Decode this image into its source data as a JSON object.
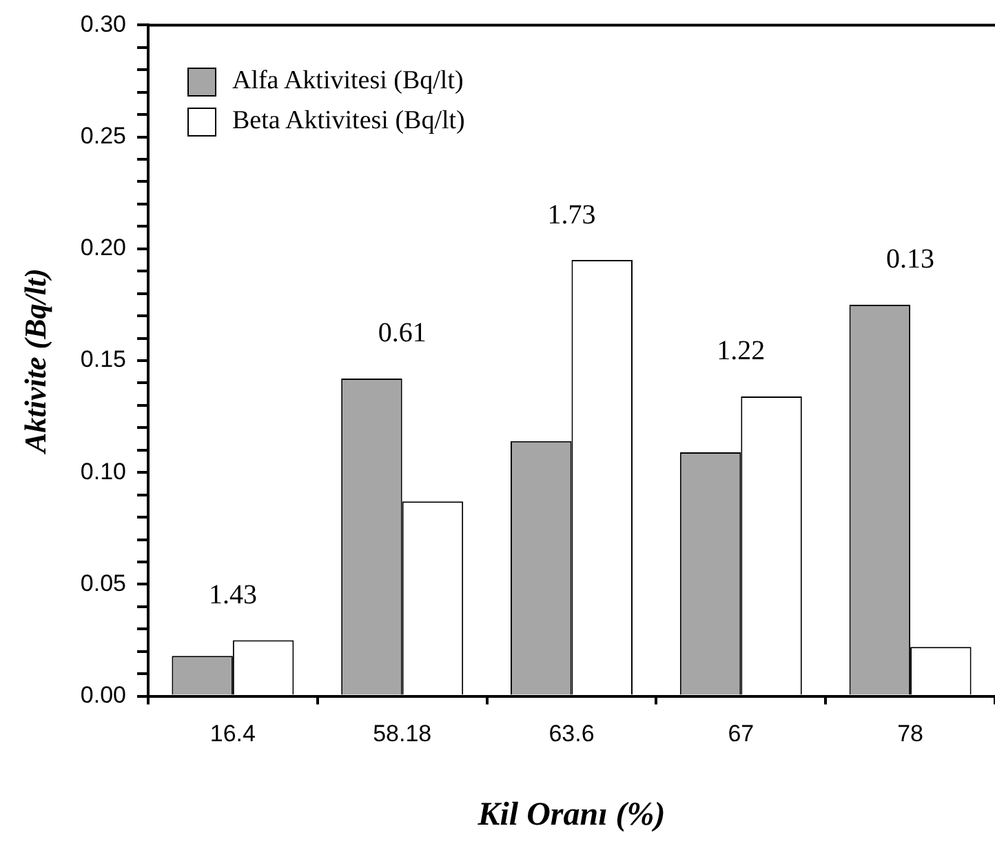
{
  "chart_data": {
    "type": "bar",
    "xlabel": "Kil Oranı (%)",
    "ylabel": "Aktivite (Bq/lt)",
    "categories": [
      "16.4",
      "58.18",
      "63.6",
      "67",
      "78"
    ],
    "series": [
      {
        "name": "Alfa Aktivitesi (Bq/lt)",
        "color": "#a6a6a6",
        "values": [
          0.018,
          0.142,
          0.114,
          0.109,
          0.175
        ]
      },
      {
        "name": "Beta Aktivitesi (Bq/lt)",
        "color": "#ffffff",
        "values": [
          0.025,
          0.087,
          0.195,
          0.134,
          0.022
        ]
      }
    ],
    "ylim": [
      0,
      0.3
    ],
    "yticks": [
      {
        "value": 0,
        "label": "0.00"
      },
      {
        "value": 0.01,
        "label": null
      },
      {
        "value": 0.02,
        "label": null
      },
      {
        "value": 0.03,
        "label": null
      },
      {
        "value": 0.04,
        "label": null
      },
      "0.05",
      {
        "value": 0.06,
        "label": null
      },
      {
        "value": 0.07,
        "label": null
      },
      {
        "value": 0.08,
        "label": null
      },
      {
        "value": 0.09,
        "label": null
      },
      {
        "value": 0.1,
        "label": "0.10"
      },
      {
        "value": 0.11,
        "label": null
      },
      {
        "value": 0.12,
        "label": null
      },
      {
        "value": 0.13,
        "label": null
      },
      {
        "value": 0.14,
        "label": null
      },
      {
        "value": 0.15,
        "label": "0.15"
      },
      {
        "value": 0.16,
        "label": null
      },
      {
        "value": 0.17,
        "label": null
      },
      {
        "value": 0.18,
        "label": null
      },
      {
        "value": 0.19,
        "label": null
      },
      {
        "value": 0.2,
        "label": "0.20"
      },
      {
        "value": 0.21,
        "label": null
      },
      {
        "value": 0.22,
        "label": null
      },
      {
        "value": 0.23,
        "label": null
      },
      {
        "value": 0.24,
        "label": null
      },
      {
        "value": 0.25,
        "label": "0.25"
      },
      {
        "value": 0.26,
        "label": null
      },
      {
        "value": 0.27,
        "label": null
      },
      {
        "value": 0.28,
        "label": null
      },
      {
        "value": 0.29,
        "label": null
      },
      {
        "value": 0.3,
        "label": "0.30"
      }
    ],
    "annotations": [
      "1.43",
      "0.61",
      "1.73",
      "1.22",
      "0.13"
    ],
    "grid": false,
    "legend": "top left"
  }
}
